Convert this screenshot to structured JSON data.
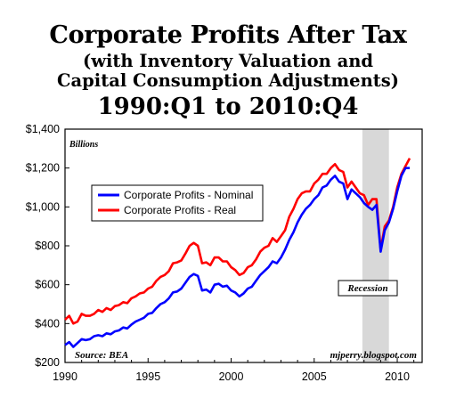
{
  "header": {
    "title": "Corporate Profits After Tax",
    "subtitle_line1": "(with Inventory Valuation and",
    "subtitle_line2": "Capital Consumption Adjustments)",
    "period": "1990:Q1 to 2010:Q4"
  },
  "chart_data": {
    "type": "line",
    "ylabel": "Billions",
    "ylim": [
      200,
      1400
    ],
    "xlim": [
      1990,
      2011.5
    ],
    "y_ticks": [
      "$200",
      "$400",
      "$600",
      "$800",
      "$1,000",
      "$1,200",
      "$1,400"
    ],
    "x_ticks": [
      "1990",
      "1995",
      "2000",
      "2005",
      "2010"
    ],
    "grid": false,
    "legend_position": "upper-left",
    "recession": {
      "start": 2007.9,
      "end": 2009.5,
      "label": "Recession"
    },
    "source": "Source: BEA",
    "credit": "mjperry.blogspot.com",
    "colors": {
      "nominal": "#0000ff",
      "real": "#ff0000",
      "recession": "#d8d8d8"
    },
    "series": [
      {
        "name": "Corporate Profits - Nominal",
        "x": [
          1990.0,
          1990.25,
          1990.5,
          1990.75,
          1991.0,
          1991.25,
          1991.5,
          1991.75,
          1992.0,
          1992.25,
          1992.5,
          1992.75,
          1993.0,
          1993.25,
          1993.5,
          1993.75,
          1994.0,
          1994.25,
          1994.5,
          1994.75,
          1995.0,
          1995.25,
          1995.5,
          1995.75,
          1996.0,
          1996.25,
          1996.5,
          1996.75,
          1997.0,
          1997.25,
          1997.5,
          1997.75,
          1998.0,
          1998.25,
          1998.5,
          1998.75,
          1999.0,
          1999.25,
          1999.5,
          1999.75,
          2000.0,
          2000.25,
          2000.5,
          2000.75,
          2001.0,
          2001.25,
          2001.5,
          2001.75,
          2002.0,
          2002.25,
          2002.5,
          2002.75,
          2003.0,
          2003.25,
          2003.5,
          2003.75,
          2004.0,
          2004.25,
          2004.5,
          2004.75,
          2005.0,
          2005.25,
          2005.5,
          2005.75,
          2006.0,
          2006.25,
          2006.5,
          2006.75,
          2007.0,
          2007.25,
          2007.5,
          2007.75,
          2008.0,
          2008.25,
          2008.5,
          2008.75,
          2009.0,
          2009.25,
          2009.5,
          2009.75,
          2010.0,
          2010.25,
          2010.5,
          2010.75
        ],
        "values": [
          290,
          305,
          280,
          300,
          320,
          315,
          320,
          335,
          340,
          335,
          350,
          345,
          360,
          365,
          380,
          375,
          395,
          410,
          420,
          430,
          450,
          455,
          480,
          500,
          510,
          530,
          560,
          565,
          580,
          610,
          640,
          655,
          645,
          570,
          575,
          560,
          600,
          605,
          590,
          595,
          570,
          560,
          540,
          555,
          580,
          590,
          620,
          650,
          670,
          690,
          720,
          710,
          740,
          780,
          830,
          870,
          920,
          960,
          990,
          1010,
          1040,
          1060,
          1100,
          1110,
          1140,
          1160,
          1130,
          1120,
          1040,
          1090,
          1070,
          1050,
          1020,
          1000,
          985,
          1010,
          770,
          880,
          920,
          990,
          1080,
          1160,
          1200,
          1200
        ]
      },
      {
        "name": "Corporate Profits - Real",
        "x": [
          1990.0,
          1990.25,
          1990.5,
          1990.75,
          1991.0,
          1991.25,
          1991.5,
          1991.75,
          1992.0,
          1992.25,
          1992.5,
          1992.75,
          1993.0,
          1993.25,
          1993.5,
          1993.75,
          1994.0,
          1994.25,
          1994.5,
          1994.75,
          1995.0,
          1995.25,
          1995.5,
          1995.75,
          1996.0,
          1996.25,
          1996.5,
          1996.75,
          1997.0,
          1997.25,
          1997.5,
          1997.75,
          1998.0,
          1998.25,
          1998.5,
          1998.75,
          1999.0,
          1999.25,
          1999.5,
          1999.75,
          2000.0,
          2000.25,
          2000.5,
          2000.75,
          2001.0,
          2001.25,
          2001.5,
          2001.75,
          2002.0,
          2002.25,
          2002.5,
          2002.75,
          2003.0,
          2003.25,
          2003.5,
          2003.75,
          2004.0,
          2004.25,
          2004.5,
          2004.75,
          2005.0,
          2005.25,
          2005.5,
          2005.75,
          2006.0,
          2006.25,
          2006.5,
          2006.75,
          2007.0,
          2007.25,
          2007.5,
          2007.75,
          2008.0,
          2008.25,
          2008.5,
          2008.75,
          2009.0,
          2009.25,
          2009.5,
          2009.75,
          2010.0,
          2010.25,
          2010.5,
          2010.75
        ],
        "values": [
          420,
          440,
          400,
          410,
          450,
          440,
          440,
          450,
          470,
          460,
          480,
          470,
          490,
          495,
          510,
          505,
          530,
          540,
          555,
          560,
          580,
          590,
          620,
          640,
          650,
          670,
          710,
          715,
          725,
          760,
          800,
          815,
          800,
          710,
          715,
          700,
          740,
          740,
          720,
          720,
          690,
          675,
          650,
          660,
          690,
          700,
          730,
          770,
          790,
          800,
          840,
          820,
          850,
          880,
          950,
          990,
          1040,
          1070,
          1080,
          1080,
          1120,
          1140,
          1170,
          1170,
          1200,
          1220,
          1190,
          1180,
          1100,
          1130,
          1100,
          1070,
          1060,
          1010,
          1040,
          1040,
          780,
          900,
          930,
          1000,
          1100,
          1170,
          1210,
          1250
        ]
      }
    ]
  }
}
